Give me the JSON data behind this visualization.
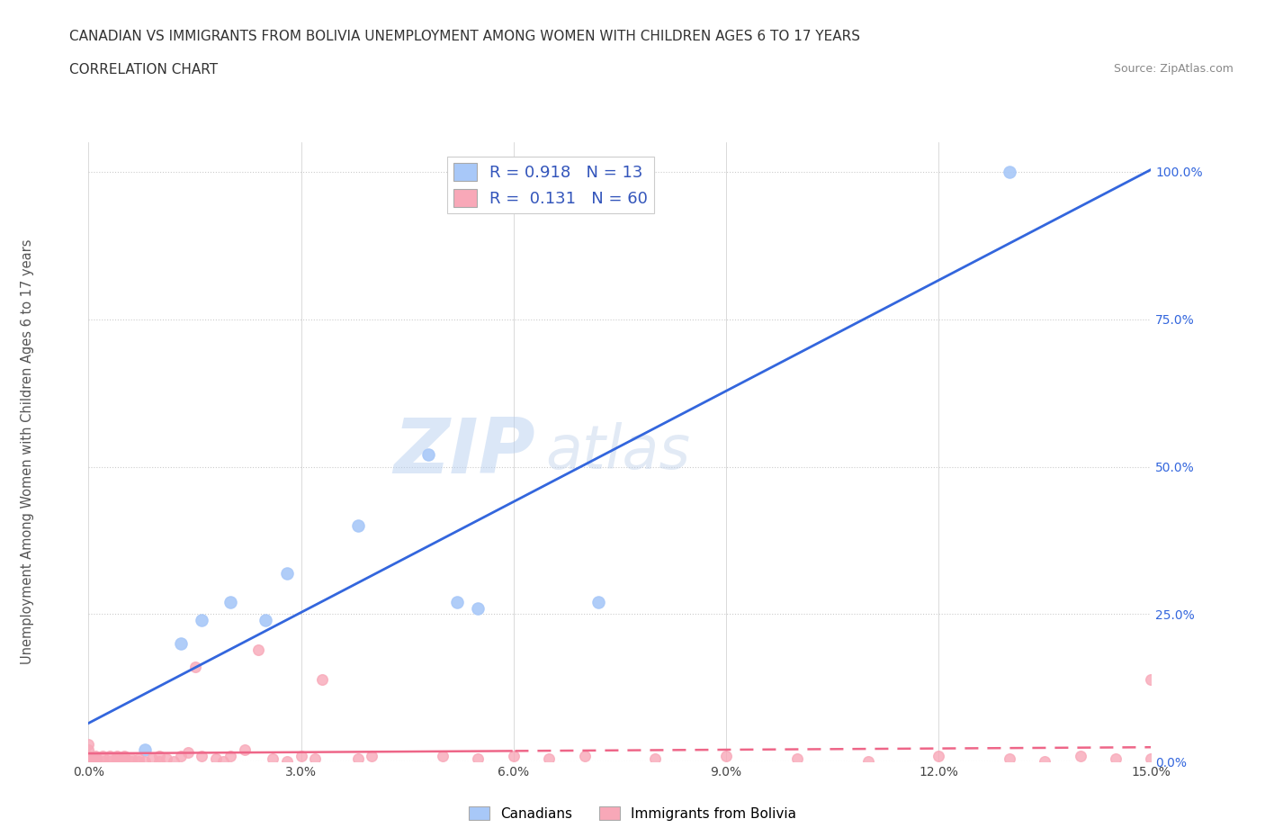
{
  "title_line1": "CANADIAN VS IMMIGRANTS FROM BOLIVIA UNEMPLOYMENT AMONG WOMEN WITH CHILDREN AGES 6 TO 17 YEARS",
  "title_line2": "CORRELATION CHART",
  "source_text": "Source: ZipAtlas.com",
  "ylabel": "Unemployment Among Women with Children Ages 6 to 17 years",
  "xlim": [
    0.0,
    0.15
  ],
  "ylim": [
    0.0,
    1.05
  ],
  "xticks": [
    0.0,
    0.03,
    0.06,
    0.09,
    0.12,
    0.15
  ],
  "xticklabels": [
    "0.0%",
    "3.0%",
    "6.0%",
    "9.0%",
    "12.0%",
    "15.0%"
  ],
  "yticks": [
    0.0,
    0.25,
    0.5,
    0.75,
    1.0
  ],
  "yticklabels": [
    "0.0%",
    "25.0%",
    "50.0%",
    "75.0%",
    "100.0%"
  ],
  "canadian_color": "#a8c8f8",
  "bolivian_color": "#f8a8b8",
  "canadian_line_color": "#3366dd",
  "bolivian_line_color": "#ee6688",
  "canadian_R": 0.918,
  "canadian_N": 13,
  "bolivian_R": 0.131,
  "bolivian_N": 60,
  "watermark_ZIP": "ZIP",
  "watermark_atlas": "atlas",
  "legend_label_canadian": "Canadians",
  "legend_label_bolivian": "Immigrants from Bolivia",
  "background_color": "#ffffff",
  "grid_color": "#cccccc",
  "canadian_scatter_x": [
    0.001,
    0.008,
    0.013,
    0.016,
    0.02,
    0.025,
    0.028,
    0.038,
    0.048,
    0.052,
    0.055,
    0.072,
    0.13
  ],
  "canadian_scatter_y": [
    0.005,
    0.02,
    0.2,
    0.24,
    0.27,
    0.24,
    0.32,
    0.4,
    0.52,
    0.27,
    0.26,
    0.27,
    1.0
  ],
  "bolivian_scatter_x": [
    0.0,
    0.0,
    0.0,
    0.0,
    0.0,
    0.001,
    0.001,
    0.001,
    0.002,
    0.002,
    0.003,
    0.003,
    0.004,
    0.004,
    0.004,
    0.005,
    0.005,
    0.005,
    0.006,
    0.006,
    0.007,
    0.007,
    0.008,
    0.009,
    0.01,
    0.01,
    0.011,
    0.012,
    0.013,
    0.014,
    0.015,
    0.016,
    0.018,
    0.019,
    0.02,
    0.022,
    0.024,
    0.026,
    0.028,
    0.03,
    0.032,
    0.033,
    0.038,
    0.04,
    0.05,
    0.055,
    0.06,
    0.065,
    0.07,
    0.08,
    0.09,
    0.1,
    0.11,
    0.12,
    0.13,
    0.135,
    0.14,
    0.145,
    0.15,
    0.15
  ],
  "bolivian_scatter_y": [
    0.0,
    0.005,
    0.01,
    0.02,
    0.03,
    0.0,
    0.005,
    0.01,
    0.0,
    0.01,
    0.0,
    0.01,
    0.0,
    0.005,
    0.01,
    0.0,
    0.005,
    0.01,
    0.0,
    0.005,
    0.0,
    0.005,
    0.0,
    0.005,
    0.0,
    0.01,
    0.005,
    0.0,
    0.01,
    0.015,
    0.16,
    0.01,
    0.005,
    0.0,
    0.01,
    0.02,
    0.19,
    0.005,
    0.0,
    0.01,
    0.005,
    0.14,
    0.005,
    0.01,
    0.01,
    0.005,
    0.01,
    0.005,
    0.01,
    0.005,
    0.01,
    0.005,
    0.0,
    0.01,
    0.005,
    0.0,
    0.01,
    0.005,
    0.14,
    0.005
  ]
}
